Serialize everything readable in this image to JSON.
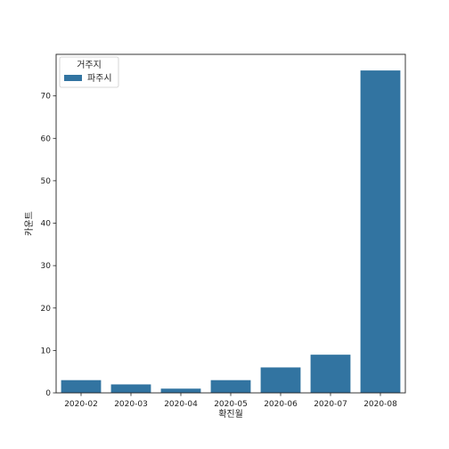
{
  "chart_data": {
    "type": "bar",
    "categories": [
      "2020-02",
      "2020-03",
      "2020-04",
      "2020-05",
      "2020-06",
      "2020-07",
      "2020-08"
    ],
    "series": [
      {
        "name": "파주시",
        "values": [
          3,
          2,
          1,
          3,
          6,
          9,
          76
        ],
        "color": "#3274a1"
      }
    ],
    "title": "",
    "xlabel": "확진월",
    "ylabel": "카운트",
    "ylim": [
      0,
      79.8
    ],
    "yticks": [
      0,
      10,
      20,
      30,
      40,
      50,
      60,
      70
    ],
    "grid": false,
    "legend": {
      "title": "거주지",
      "placement": "upper-left"
    }
  }
}
